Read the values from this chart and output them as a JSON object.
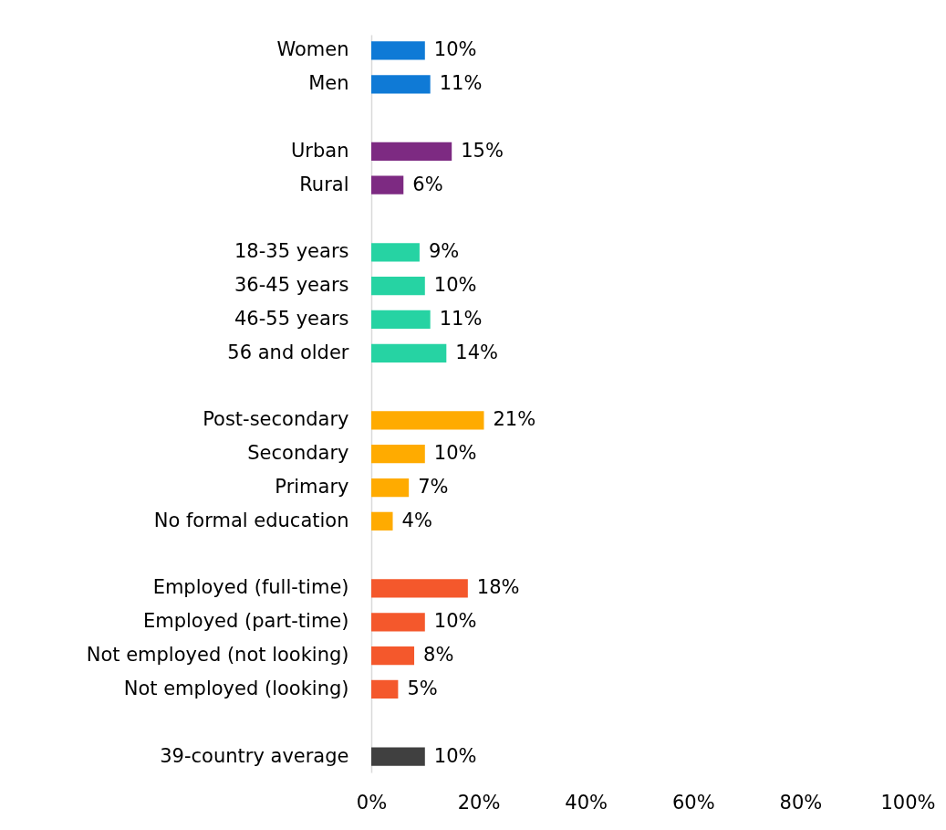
{
  "chart_data": {
    "type": "bar",
    "orientation": "horizontal",
    "categories": [
      "Women",
      "Men",
      null,
      "Urban",
      "Rural",
      null,
      "18-35 years",
      "36-45 years",
      "46-55 years",
      "56 and older",
      null,
      "Post-secondary",
      "Secondary",
      "Primary",
      "No formal education",
      null,
      "Employed (full-time)",
      "Employed (part-time)",
      "Not employed (not looking)",
      "Not employed (looking)",
      null,
      "39-country average"
    ],
    "values": [
      10,
      11,
      null,
      15,
      6,
      null,
      9,
      10,
      11,
      14,
      null,
      21,
      10,
      7,
      4,
      null,
      18,
      10,
      8,
      5,
      null,
      10
    ],
    "value_labels": [
      "10%",
      "11%",
      null,
      "15%",
      "6%",
      null,
      "9%",
      "10%",
      "11%",
      "14%",
      null,
      "21%",
      "10%",
      "7%",
      "4%",
      null,
      "18%",
      "10%",
      "8%",
      "5%",
      null,
      "10%"
    ],
    "colors": [
      "#0f7ad6",
      "#0f7ad6",
      null,
      "#7d2a82",
      "#7d2a82",
      null,
      "#26d3a3",
      "#26d3a3",
      "#26d3a3",
      "#26d3a3",
      null,
      "#ffab00",
      "#ffab00",
      "#ffab00",
      "#ffab00",
      null,
      "#f4582c",
      "#f4582c",
      "#f4582c",
      "#f4582c",
      null,
      "#404040"
    ],
    "xlim": [
      0,
      100
    ],
    "xticks": [
      {
        "value": 0,
        "label": "0%"
      },
      {
        "value": 20,
        "label": "20%"
      },
      {
        "value": 40,
        "label": "40%"
      },
      {
        "value": 60,
        "label": "60%"
      },
      {
        "value": 80,
        "label": "80%"
      },
      {
        "value": 100,
        "label": "100%"
      }
    ],
    "grid": false
  }
}
